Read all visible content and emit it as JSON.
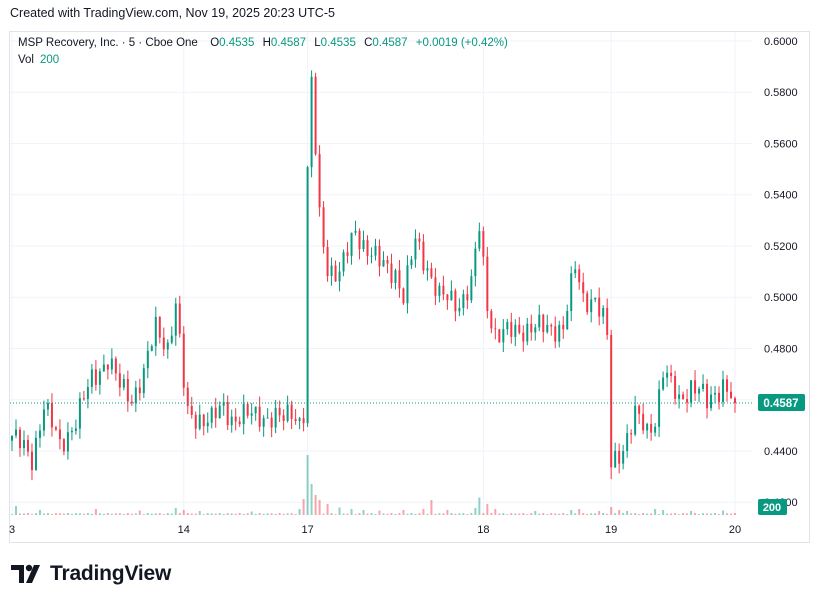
{
  "header": {
    "caption": "Created with TradingView.com, Nov 19, 2025 20:23 UTC-5"
  },
  "legend": {
    "symbol": "MSP Recovery, Inc. · 5 · Cboe One",
    "open_label": "O",
    "open": "0.4535",
    "high_label": "H",
    "high": "0.4587",
    "low_label": "L",
    "low": "0.4535",
    "close_label": "C",
    "close": "0.4587",
    "change": "+0.0019 (+0.42%)",
    "vol_label": "Vol",
    "vol_value": "200"
  },
  "colors": {
    "up": "#089981",
    "down": "#f23645",
    "last_price_line": "#089981",
    "grid": "#f0f3fa"
  },
  "footer": {
    "brand": "TradingView",
    "logo_icon": "tradingview-logo-icon"
  },
  "chart_data": {
    "type": "candlestick",
    "interval": "5 min",
    "price_axis": {
      "range": [
        0.415,
        0.6035
      ],
      "ticks": [
        "0.6000",
        "0.5800",
        "0.5600",
        "0.5400",
        "0.5200",
        "0.5000",
        "0.4800",
        "0.4600",
        "0.4400",
        "0.4200"
      ],
      "tick_values": [
        0.6,
        0.58,
        0.56,
        0.54,
        0.52,
        0.5,
        0.48,
        0.46,
        0.44,
        0.42
      ]
    },
    "last_price": {
      "value": 0.4587,
      "label": "0.4587"
    },
    "volume_last_label": "200",
    "time_axis": {
      "labels": [
        "3",
        "14",
        "17",
        "18",
        "19",
        "20"
      ],
      "bar_index": [
        0,
        43,
        74,
        118,
        150,
        181
      ]
    },
    "keyframes": [
      [
        0,
        0.446
      ],
      [
        5,
        0.437
      ],
      [
        8,
        0.458
      ],
      [
        12,
        0.442
      ],
      [
        16,
        0.452
      ],
      [
        20,
        0.468
      ],
      [
        24,
        0.476
      ],
      [
        27,
        0.465
      ],
      [
        30,
        0.461
      ],
      [
        33,
        0.47
      ],
      [
        36,
        0.488
      ],
      [
        39,
        0.481
      ],
      [
        41,
        0.497
      ],
      [
        43,
        0.466
      ],
      [
        44,
        0.454
      ],
      [
        50,
        0.452
      ],
      [
        53,
        0.457
      ],
      [
        55,
        0.453
      ],
      [
        62,
        0.454
      ],
      [
        68,
        0.452
      ],
      [
        70,
        0.456
      ],
      [
        72,
        0.452
      ],
      [
        73,
        0.455
      ],
      [
        74,
        0.548
      ],
      [
        75,
        0.583
      ],
      [
        77,
        0.531
      ],
      [
        79,
        0.512
      ],
      [
        82,
        0.509
      ],
      [
        86,
        0.526
      ],
      [
        88,
        0.521
      ],
      [
        92,
        0.513
      ],
      [
        96,
        0.51
      ],
      [
        98,
        0.5
      ],
      [
        101,
        0.522
      ],
      [
        104,
        0.512
      ],
      [
        107,
        0.5
      ],
      [
        112,
        0.498
      ],
      [
        115,
        0.505
      ],
      [
        117,
        0.527
      ],
      [
        119,
        0.497
      ],
      [
        121,
        0.486
      ],
      [
        126,
        0.486
      ],
      [
        130,
        0.489
      ],
      [
        134,
        0.487
      ],
      [
        138,
        0.489
      ],
      [
        140,
        0.504
      ],
      [
        141,
        0.511
      ],
      [
        143,
        0.499
      ],
      [
        146,
        0.5
      ],
      [
        148,
        0.491
      ],
      [
        149,
        0.484
      ],
      [
        150,
        0.434
      ],
      [
        153,
        0.442
      ],
      [
        156,
        0.454
      ],
      [
        159,
        0.447
      ],
      [
        161,
        0.453
      ],
      [
        163,
        0.472
      ],
      [
        165,
        0.465
      ],
      [
        167,
        0.459
      ],
      [
        170,
        0.466
      ],
      [
        172,
        0.464
      ],
      [
        174,
        0.458
      ],
      [
        176,
        0.462
      ],
      [
        178,
        0.467
      ],
      [
        180,
        0.462
      ],
      [
        181,
        0.4587
      ]
    ],
    "volume_spikes": [
      [
        1,
        18
      ],
      [
        7,
        10
      ],
      [
        21,
        12
      ],
      [
        32,
        9
      ],
      [
        41,
        14
      ],
      [
        43,
        10
      ],
      [
        47,
        8
      ],
      [
        60,
        7
      ],
      [
        72,
        12
      ],
      [
        73,
        32
      ],
      [
        74,
        120
      ],
      [
        75,
        62
      ],
      [
        76,
        40
      ],
      [
        77,
        30
      ],
      [
        79,
        22
      ],
      [
        82,
        15
      ],
      [
        85,
        12
      ],
      [
        88,
        10
      ],
      [
        92,
        9
      ],
      [
        98,
        10
      ],
      [
        103,
        12
      ],
      [
        105,
        30
      ],
      [
        109,
        10
      ],
      [
        116,
        14
      ],
      [
        117,
        35
      ],
      [
        119,
        22
      ],
      [
        121,
        12
      ],
      [
        131,
        8
      ],
      [
        140,
        10
      ],
      [
        142,
        12
      ],
      [
        147,
        8
      ],
      [
        150,
        16
      ],
      [
        152,
        10
      ],
      [
        154,
        8
      ],
      [
        161,
        12
      ],
      [
        163,
        10
      ],
      [
        170,
        8
      ],
      [
        178,
        9
      ]
    ],
    "grid": true
  }
}
